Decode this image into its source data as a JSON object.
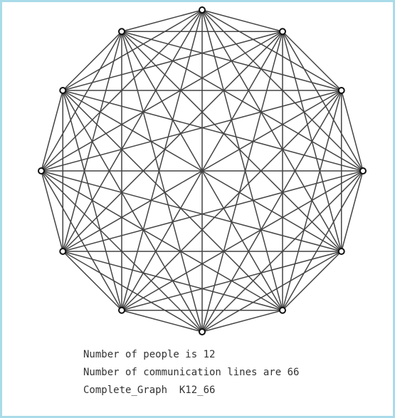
{
  "info": {
    "lines": [
      "Number of people is 12",
      "Number of communication lines are 66",
      "Complete_Graph  K12_66"
    ]
  }
}
